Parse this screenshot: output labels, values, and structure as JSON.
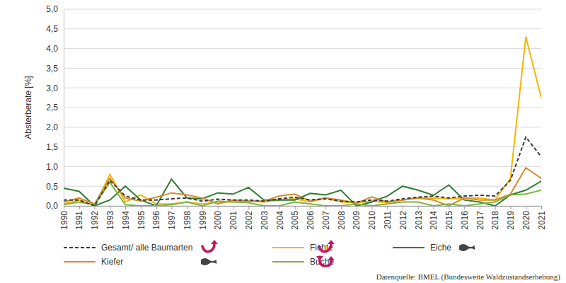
{
  "chart_data": {
    "type": "line",
    "y_label": "Absterberate [%]",
    "annotations": [
      "Datenquelle: BMEL (Bundesweite Waldzustandserhebung)"
    ],
    "x": [
      1990,
      1991,
      1992,
      1993,
      1994,
      1995,
      1996,
      1997,
      1998,
      1999,
      2000,
      2001,
      2002,
      2003,
      2004,
      2005,
      2006,
      2007,
      2008,
      2009,
      2010,
      2011,
      2012,
      2013,
      2014,
      2015,
      2016,
      2017,
      2018,
      2019,
      2020,
      2021
    ],
    "xlim": [
      1990,
      2021
    ],
    "xticks": [
      1990,
      1991,
      1992,
      1993,
      1994,
      1995,
      1996,
      1997,
      1998,
      1999,
      2000,
      2001,
      2002,
      2003,
      2004,
      2005,
      2006,
      2007,
      2008,
      2009,
      2010,
      2011,
      2012,
      2013,
      2014,
      2015,
      2016,
      2017,
      2018,
      2019,
      2020,
      2021
    ],
    "ylim": [
      0,
      5
    ],
    "yticks": [
      {
        "value": 0,
        "label": "0,0"
      },
      {
        "value": 0.5,
        "label": "0,5"
      },
      {
        "value": 1,
        "label": "1,0"
      },
      {
        "value": 1.5,
        "label": "1,5"
      },
      {
        "value": 2,
        "label": "2,0"
      },
      {
        "value": 2.5,
        "label": "2,5"
      },
      {
        "value": 3,
        "label": "3,0"
      },
      {
        "value": 3.5,
        "label": "3,5"
      },
      {
        "value": 4,
        "label": "4,0"
      },
      {
        "value": 4.5,
        "label": "4,5"
      },
      {
        "value": 5,
        "label": "5,0"
      }
    ],
    "grid": true,
    "legend": "bottom",
    "series": [
      {
        "name": "Gesamt/ alle Baumarten",
        "color": "#3a3a3a",
        "line_style": "dashed",
        "values": [
          0.15,
          0.15,
          0.0,
          0.65,
          0.25,
          0.15,
          0.15,
          0.18,
          0.2,
          0.12,
          0.17,
          0.15,
          0.15,
          0.12,
          0.18,
          0.22,
          0.15,
          0.18,
          0.12,
          0.1,
          0.15,
          0.12,
          0.18,
          0.22,
          0.25,
          0.2,
          0.25,
          0.27,
          0.25,
          0.65,
          1.75,
          1.25
        ]
      },
      {
        "name": "Fichte",
        "color": "#f2b705",
        "line_style": "solid",
        "values": [
          0.05,
          0.15,
          0.0,
          0.8,
          0.1,
          0.28,
          0.05,
          0.05,
          0.1,
          0.05,
          0.1,
          0.1,
          0.12,
          0.1,
          0.15,
          0.18,
          0.1,
          0.2,
          0.1,
          0.08,
          0.12,
          0.08,
          0.15,
          0.2,
          0.2,
          0.18,
          0.2,
          0.2,
          0.15,
          0.7,
          4.3,
          2.75
        ]
      },
      {
        "name": "Eiche",
        "color": "#2e7d32",
        "line_style": "solid",
        "values": [
          0.45,
          0.37,
          0.0,
          0.15,
          0.5,
          0.15,
          0.0,
          0.68,
          0.2,
          0.18,
          0.33,
          0.3,
          0.47,
          0.15,
          0.15,
          0.15,
          0.32,
          0.28,
          0.4,
          0.0,
          0.1,
          0.25,
          0.5,
          0.4,
          0.27,
          0.53,
          0.15,
          0.1,
          0.0,
          0.28,
          0.4,
          0.63
        ]
      },
      {
        "name": "Kiefer",
        "color": "#d98a2b",
        "line_style": "solid",
        "values": [
          0.1,
          0.2,
          0.05,
          0.7,
          0.2,
          0.12,
          0.22,
          0.33,
          0.28,
          0.2,
          0.05,
          0.15,
          0.12,
          0.12,
          0.25,
          0.3,
          0.12,
          0.2,
          0.15,
          0.07,
          0.23,
          0.1,
          0.15,
          0.2,
          0.15,
          0.0,
          0.2,
          0.15,
          0.15,
          0.3,
          0.97,
          0.7
        ]
      },
      {
        "name": "Buche",
        "color": "#7cb342",
        "line_style": "solid",
        "values": [
          0.03,
          0.1,
          0.03,
          0.6,
          0.03,
          0.0,
          0.0,
          0.03,
          0.1,
          0.0,
          0.12,
          0.1,
          0.08,
          0.0,
          0.0,
          0.1,
          0.05,
          0.0,
          0.0,
          0.05,
          0.0,
          0.05,
          0.1,
          0.1,
          0.0,
          0.05,
          0.0,
          0.05,
          0.1,
          0.28,
          0.3,
          0.4
        ]
      }
    ]
  }
}
